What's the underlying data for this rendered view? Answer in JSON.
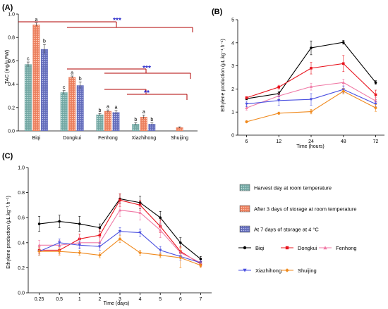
{
  "colors": {
    "harvest": "#7fb2ae",
    "storage_room": "#f08a6a",
    "storage_cold": "#6f78c4",
    "Biqi": "#000000",
    "Dongkui": "#e8141e",
    "Fenhong": "#f07aa6",
    "Xiazhihong": "#4a50e0",
    "Shuijing": "#f08a1e",
    "bracket": "#b00000",
    "sig": "#2020c8"
  },
  "chart_data": [
    {
      "panel": "(A)",
      "type": "bar",
      "ylabel": "TAC (mg/g FW)",
      "ylim": [
        0,
        1.0
      ],
      "yticks": [
        "0.0",
        "0.2",
        "0.4",
        "0.6",
        "0.8",
        "1.0"
      ],
      "categories": [
        "Biqi",
        "Dongkui",
        "Fenhong",
        "Xiazhihong",
        "Shuijing"
      ],
      "series": [
        {
          "name": "Harvest day at room temperature",
          "values": [
            0.57,
            0.33,
            0.14,
            0.06,
            null
          ],
          "errors": [
            0.02,
            0.015,
            0.008,
            0.01,
            null
          ],
          "letters": [
            "c",
            "c",
            "b",
            "b",
            ""
          ]
        },
        {
          "name": "After 3 days of storage at room temperature",
          "values": [
            0.91,
            0.46,
            0.17,
            0.12,
            0.03
          ],
          "errors": [
            0.015,
            0.01,
            0.01,
            0.015,
            0.005
          ],
          "letters": [
            "a",
            "a",
            "a",
            "a",
            ""
          ]
        },
        {
          "name": "At 7 days of storage at 4 °C",
          "values": [
            0.7,
            0.39,
            0.16,
            0.06,
            null
          ],
          "errors": [
            0.04,
            0.03,
            0.015,
            0.008,
            null
          ],
          "letters": [
            "b",
            "b",
            "a",
            "b",
            ""
          ]
        }
      ],
      "significance": [
        "***",
        "***",
        "**"
      ]
    },
    {
      "panel": "(B)",
      "type": "line",
      "xlabel": "Time (hours)",
      "ylabel": "Ethylene production (μL.kg⁻¹.h⁻¹)",
      "x": [
        "6",
        "12",
        "24",
        "48",
        "72"
      ],
      "ylim": [
        0,
        5
      ],
      "yticks": [
        "0",
        "1",
        "2",
        "3",
        "4",
        "5"
      ],
      "series": [
        {
          "name": "Biqi",
          "values": [
            1.58,
            1.8,
            3.78,
            4.02,
            2.28
          ],
          "errors": [
            0.05,
            0.1,
            0.3,
            0.08,
            0.08
          ]
        },
        {
          "name": "Dongkui",
          "values": [
            1.62,
            2.08,
            2.9,
            3.1,
            1.75
          ],
          "errors": [
            0.05,
            0.08,
            0.25,
            0.35,
            0.2
          ]
        },
        {
          "name": "Fenhong",
          "values": [
            1.18,
            1.7,
            2.1,
            2.28,
            1.48
          ],
          "errors": [
            0.1,
            0.12,
            0.15,
            0.15,
            0.15
          ]
        },
        {
          "name": "Xiazhihong",
          "values": [
            1.35,
            1.5,
            1.55,
            1.98,
            1.35
          ],
          "errors": [
            0.12,
            0.2,
            0.25,
            0.15,
            0.12
          ]
        },
        {
          "name": "Shuijing",
          "values": [
            0.58,
            0.95,
            1.02,
            1.9,
            1.18
          ],
          "errors": [
            0.05,
            0.05,
            0.1,
            0.12,
            0.15
          ]
        }
      ]
    },
    {
      "panel": "(C)",
      "type": "line",
      "xlabel": "Time (days)",
      "ylabel": "Ethylene production (μL.kg⁻¹.h⁻¹)",
      "x": [
        "0.25",
        "0.5",
        "1",
        "2",
        "3",
        "4",
        "5",
        "6",
        "7"
      ],
      "ylim": [
        0,
        1.0
      ],
      "yticks": [
        "0.0",
        "0.2",
        "0.4",
        "0.6",
        "0.8",
        "1.0"
      ],
      "series": [
        {
          "name": "Biqi",
          "values": [
            0.55,
            0.57,
            0.55,
            0.52,
            0.75,
            0.72,
            0.6,
            0.4,
            0.27
          ],
          "errors": [
            0.06,
            0.05,
            0.06,
            0.03,
            0.04,
            0.05,
            0.05,
            0.04,
            0.02
          ]
        },
        {
          "name": "Dongkui",
          "values": [
            0.34,
            0.34,
            0.43,
            0.46,
            0.74,
            0.7,
            0.53,
            0.33,
            0.23
          ],
          "errors": [
            0.03,
            0.03,
            0.04,
            0.05,
            0.05,
            0.04,
            0.05,
            0.04,
            0.02
          ]
        },
        {
          "name": "Fenhong",
          "values": [
            0.38,
            0.38,
            0.4,
            0.4,
            0.66,
            0.64,
            0.5,
            0.32,
            0.24
          ],
          "errors": [
            0.04,
            0.04,
            0.04,
            0.04,
            0.05,
            0.06,
            0.06,
            0.04,
            0.02
          ]
        },
        {
          "name": "Xiazhihong",
          "values": [
            0.33,
            0.4,
            0.38,
            0.37,
            0.49,
            0.48,
            0.34,
            0.29,
            0.24
          ],
          "errors": [
            0.03,
            0.03,
            0.03,
            0.03,
            0.03,
            0.03,
            0.03,
            0.03,
            0.02
          ]
        },
        {
          "name": "Shuijing",
          "values": [
            0.33,
            0.33,
            0.32,
            0.3,
            0.43,
            0.32,
            0.3,
            0.28,
            0.22
          ],
          "errors": [
            0.03,
            0.03,
            0.02,
            0.02,
            0.03,
            0.02,
            0.02,
            0.08,
            0.02
          ]
        }
      ]
    }
  ],
  "legend_bars": [
    "Harvest day at room temperature",
    "After 3 days of storage at room temperature",
    "At 7 days of storage at 4 °C"
  ],
  "legend_lines": [
    "Biqi",
    "Dongkui",
    "Fenhong",
    "Xiazhihong",
    "Shuijing"
  ]
}
